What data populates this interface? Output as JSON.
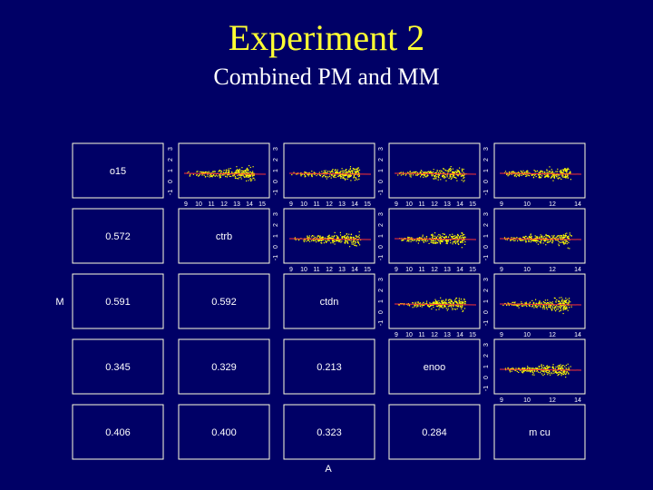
{
  "slide": {
    "title": "Experiment 2",
    "subtitle": "Combined PM and MM"
  },
  "chart_data": {
    "type": "scatter",
    "layout": "pairs-matrix",
    "xlabel": "A",
    "ylabel": "M",
    "variables": [
      "o15",
      "ctrb",
      "ctdn",
      "enoo",
      "m cu"
    ],
    "correlations": [
      {
        "row": 1,
        "col": 0,
        "value": "0.572"
      },
      {
        "row": 2,
        "col": 0,
        "value": "0.591"
      },
      {
        "row": 2,
        "col": 1,
        "value": "0.592"
      },
      {
        "row": 3,
        "col": 0,
        "value": "0.345"
      },
      {
        "row": 3,
        "col": 1,
        "value": "0.329"
      },
      {
        "row": 3,
        "col": 2,
        "value": "0.213"
      },
      {
        "row": 4,
        "col": 0,
        "value": "0.406"
      },
      {
        "row": 4,
        "col": 1,
        "value": "0.400"
      },
      {
        "row": 4,
        "col": 2,
        "value": "0.323"
      },
      {
        "row": 4,
        "col": 3,
        "value": "0.284"
      }
    ],
    "x_ticks": {
      "default": [
        "9",
        "10",
        "11",
        "12",
        "13",
        "14",
        "15"
      ],
      "col4": [
        "9",
        "10",
        "12",
        "14"
      ]
    },
    "y_ticks": {
      "default": [
        "-1",
        "0",
        "1",
        "2",
        "3"
      ]
    },
    "scatter_panels": [
      {
        "row": 0,
        "col": 1
      },
      {
        "row": 0,
        "col": 2
      },
      {
        "row": 0,
        "col": 3
      },
      {
        "row": 0,
        "col": 4
      },
      {
        "row": 1,
        "col": 2
      },
      {
        "row": 1,
        "col": 3
      },
      {
        "row": 1,
        "col": 4
      },
      {
        "row": 2,
        "col": 3
      },
      {
        "row": 2,
        "col": 4
      },
      {
        "row": 3,
        "col": 4
      }
    ],
    "point_color": "#ffff00",
    "fit_line_color": "#ff3333",
    "frame_color": "#ffffdd"
  }
}
